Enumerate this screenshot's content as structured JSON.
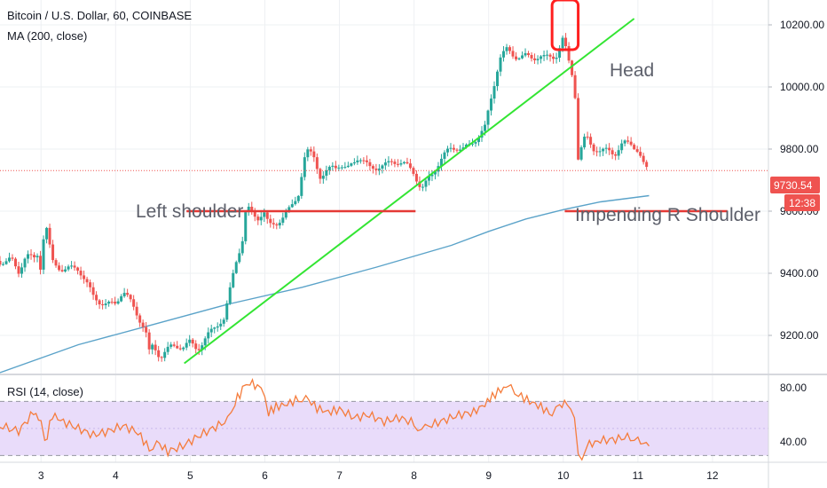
{
  "chart_data": {
    "type": "candlestick",
    "title": "Bitcoin / U.S. Dollar, 60, COINBASE",
    "indicator": "MA (200, close)",
    "price_axis": {
      "ticks": [
        "10200.00",
        "10000.00",
        "9800.00",
        "9600.00",
        "9400.00",
        "9200.00"
      ],
      "range": [
        9080,
        10280
      ]
    },
    "time_axis": {
      "ticks": [
        "3",
        "4",
        "5",
        "6",
        "7",
        "8",
        "9",
        "10",
        "11",
        "12"
      ],
      "range_days": [
        2.45,
        12.75
      ]
    },
    "last_price": "9730.54",
    "countdown": "12:38",
    "colors": {
      "up": "#26a69a",
      "down": "#ef5350",
      "ma": "#5ba3c9",
      "trendline": "#33e533",
      "neckline": "#e53935",
      "highlight": "#ff1f1f",
      "price_tag": "#ef5350",
      "timer_tag": "#ef5350",
      "rsi_line": "#f57c3c",
      "rsi_band": "#e9dcfa"
    },
    "annotations": [
      "Left shoulder",
      "Head",
      "Impending R Shoulder"
    ],
    "price_path": [
      [
        2.45,
        9440
      ],
      [
        2.6,
        9460
      ],
      [
        2.7,
        9410
      ],
      [
        2.8,
        9450
      ],
      [
        2.9,
        9430
      ],
      [
        2.98,
        9460
      ],
      [
        3.0,
        9380
      ],
      [
        3.05,
        9580
      ],
      [
        3.15,
        9450
      ],
      [
        3.3,
        9420
      ],
      [
        3.5,
        9400
      ],
      [
        3.7,
        9330
      ],
      [
        3.8,
        9320
      ],
      [
        4.0,
        9300
      ],
      [
        4.1,
        9330
      ],
      [
        4.25,
        9280
      ],
      [
        4.4,
        9230
      ],
      [
        4.45,
        9160
      ],
      [
        4.5,
        9180
      ],
      [
        4.6,
        9130
      ],
      [
        4.75,
        9150
      ],
      [
        4.9,
        9160
      ],
      [
        5.0,
        9190
      ],
      [
        5.1,
        9170
      ],
      [
        5.3,
        9210
      ],
      [
        5.45,
        9240
      ],
      [
        5.5,
        9300
      ],
      [
        5.6,
        9440
      ],
      [
        5.7,
        9520
      ],
      [
        5.75,
        9620
      ],
      [
        5.8,
        9610
      ],
      [
        5.9,
        9570
      ],
      [
        6.0,
        9580
      ],
      [
        6.05,
        9540
      ],
      [
        6.15,
        9560
      ],
      [
        6.3,
        9610
      ],
      [
        6.45,
        9660
      ],
      [
        6.55,
        9780
      ],
      [
        6.65,
        9770
      ],
      [
        6.75,
        9700
      ],
      [
        6.9,
        9760
      ],
      [
        7.0,
        9760
      ],
      [
        7.1,
        9730
      ],
      [
        7.25,
        9760
      ],
      [
        7.4,
        9740
      ],
      [
        7.55,
        9760
      ],
      [
        7.7,
        9760
      ],
      [
        7.85,
        9740
      ],
      [
        8.0,
        9720
      ],
      [
        8.1,
        9680
      ],
      [
        8.2,
        9720
      ],
      [
        8.35,
        9760
      ],
      [
        8.5,
        9790
      ],
      [
        8.65,
        9800
      ],
      [
        8.8,
        9840
      ],
      [
        8.95,
        9870
      ],
      [
        9.05,
        9970
      ],
      [
        9.15,
        10080
      ],
      [
        9.25,
        10120
      ],
      [
        9.35,
        10110
      ],
      [
        9.5,
        10110
      ],
      [
        9.6,
        10090
      ],
      [
        9.75,
        10080
      ],
      [
        9.9,
        10100
      ],
      [
        10.0,
        10170
      ],
      [
        10.05,
        10120
      ],
      [
        10.15,
        10020
      ],
      [
        10.2,
        9770
      ],
      [
        10.3,
        9830
      ],
      [
        10.4,
        9790
      ],
      [
        10.5,
        9790
      ],
      [
        10.6,
        9810
      ],
      [
        10.7,
        9800
      ],
      [
        10.8,
        9820
      ],
      [
        10.9,
        9810
      ],
      [
        11.0,
        9780
      ],
      [
        11.08,
        9740
      ],
      [
        11.15,
        9730
      ]
    ],
    "ma_200": [
      [
        2.45,
        9080
      ],
      [
        3.5,
        9170
      ],
      [
        4.5,
        9235
      ],
      [
        5.5,
        9300
      ],
      [
        6.5,
        9355
      ],
      [
        7.5,
        9420
      ],
      [
        8.5,
        9490
      ],
      [
        9.0,
        9535
      ],
      [
        9.5,
        9575
      ],
      [
        10.0,
        9605
      ],
      [
        10.5,
        9630
      ],
      [
        11.15,
        9650
      ]
    ],
    "trendline": [
      [
        4.92,
        9110
      ],
      [
        10.95,
        10220
      ]
    ],
    "left_shoulder_neckline": {
      "x": [
        4.95,
        8.02
      ],
      "y": 9600
    },
    "right_shoulder_neckline": {
      "x": [
        10.02,
        12.2
      ],
      "y": 9600
    },
    "head_box": {
      "x": [
        9.85,
        10.2
      ],
      "y": [
        10120,
        10280
      ]
    },
    "rsi": {
      "label": "RSI (14, close)",
      "ticks": [
        "80.00",
        "40.00"
      ],
      "range": [
        25,
        88
      ],
      "upper_band": 70,
      "lower_band": 30,
      "series": [
        [
          2.45,
          52
        ],
        [
          2.7,
          48
        ],
        [
          2.9,
          62
        ],
        [
          3.0,
          55
        ],
        [
          3.05,
          38
        ],
        [
          3.15,
          60
        ],
        [
          3.3,
          55
        ],
        [
          3.5,
          50
        ],
        [
          3.7,
          45
        ],
        [
          3.9,
          48
        ],
        [
          4.1,
          52
        ],
        [
          4.3,
          47
        ],
        [
          4.45,
          35
        ],
        [
          4.55,
          40
        ],
        [
          4.7,
          33
        ],
        [
          4.9,
          37
        ],
        [
          5.1,
          44
        ],
        [
          5.3,
          50
        ],
        [
          5.5,
          56
        ],
        [
          5.6,
          70
        ],
        [
          5.7,
          78
        ],
        [
          5.8,
          85
        ],
        [
          5.9,
          80
        ],
        [
          6.0,
          75
        ],
        [
          6.05,
          62
        ],
        [
          6.15,
          66
        ],
        [
          6.3,
          68
        ],
        [
          6.45,
          72
        ],
        [
          6.55,
          73
        ],
        [
          6.7,
          65
        ],
        [
          6.85,
          62
        ],
        [
          7.0,
          64
        ],
        [
          7.2,
          58
        ],
        [
          7.4,
          60
        ],
        [
          7.6,
          55
        ],
        [
          7.8,
          58
        ],
        [
          8.0,
          54
        ],
        [
          8.1,
          48
        ],
        [
          8.2,
          52
        ],
        [
          8.4,
          56
        ],
        [
          8.6,
          60
        ],
        [
          8.8,
          62
        ],
        [
          8.95,
          68
        ],
        [
          9.05,
          74
        ],
        [
          9.2,
          80
        ],
        [
          9.3,
          82
        ],
        [
          9.4,
          75
        ],
        [
          9.55,
          70
        ],
        [
          9.7,
          66
        ],
        [
          9.85,
          60
        ],
        [
          9.95,
          66
        ],
        [
          10.05,
          70
        ],
        [
          10.15,
          55
        ],
        [
          10.2,
          32
        ],
        [
          10.25,
          30
        ],
        [
          10.35,
          38
        ],
        [
          10.5,
          41
        ],
        [
          10.7,
          42
        ],
        [
          10.9,
          44
        ],
        [
          11.0,
          41
        ],
        [
          11.15,
          37
        ]
      ]
    }
  }
}
